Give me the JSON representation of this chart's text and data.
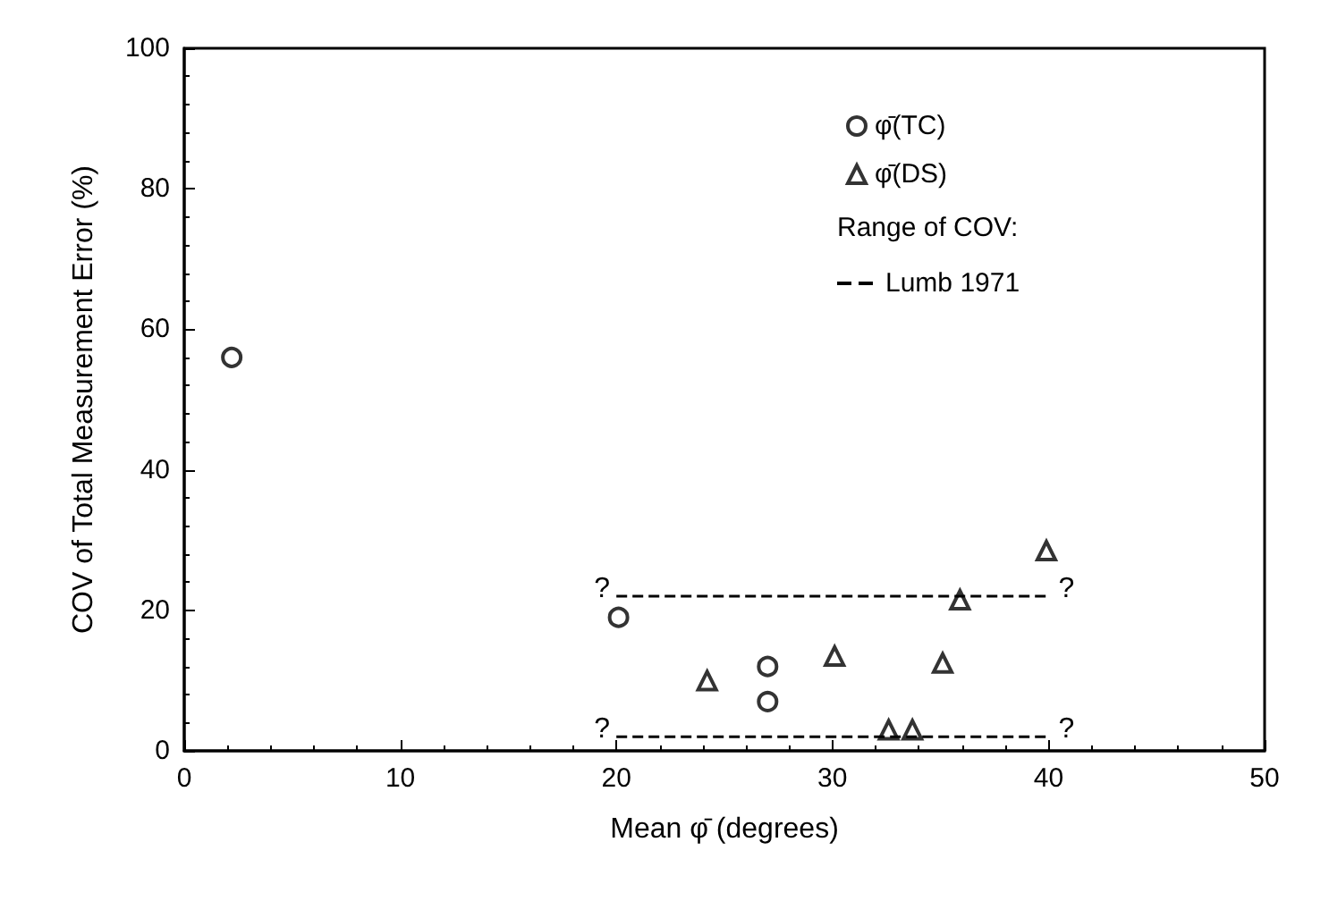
{
  "chart_data": {
    "type": "scatter",
    "xlabel": "Mean φ̄ (degrees)",
    "ylabel": "COV of Total Measurement Error (%)",
    "xlim": [
      0,
      50
    ],
    "xticks": [
      0,
      10,
      20,
      30,
      40,
      50
    ],
    "ylim": [
      0,
      100
    ],
    "yticks": [
      0,
      20,
      40,
      60,
      80,
      100
    ],
    "grid": false,
    "legend": "top right",
    "legend_title": "Range of COV:",
    "series": [
      {
        "name": "φ̄(TC)",
        "color": "#000000",
        "marker": "circle",
        "x": [
          2.2,
          20.1,
          27,
          27
        ],
        "values": [
          56,
          19,
          12,
          7
        ]
      },
      {
        "name": "φ̄(DS)",
        "color": "#000000",
        "marker": "triangle",
        "x": [
          24.2,
          30.1,
          32.6,
          33.7,
          35.1,
          35.9,
          39.9
        ],
        "values": [
          10,
          13.5,
          3,
          3,
          12.5,
          21.5,
          28.5
        ]
      },
      {
        "name": "Lumb 1971",
        "type": "line",
        "color": "#000000",
        "marker": "none",
        "line_style": "dashed",
        "x": [
          20,
          40
        ],
        "values": [
          22,
          22
        ]
      },
      {
        "type": "line",
        "color": "#000000",
        "marker": "none",
        "line_style": "dashed",
        "x": [
          20,
          40
        ],
        "values": [
          2,
          2
        ]
      }
    ],
    "annotations": [
      "?",
      "?",
      "?",
      "?"
    ]
  }
}
